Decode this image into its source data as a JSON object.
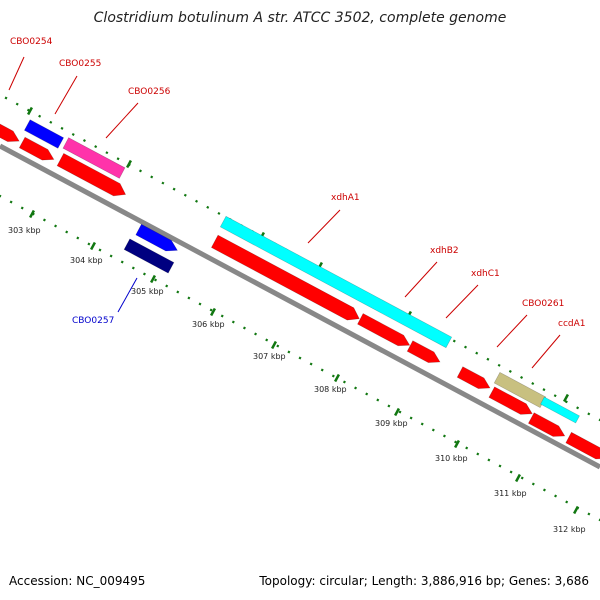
{
  "title": "Clostridium botulinum A str. ATCC 3502, complete genome",
  "footer": {
    "accession": "Accession: NC_009495",
    "stats": "Topology: circular; Length: 3,886,916 bp; Genes: 3,686"
  },
  "colors": {
    "backbone": "#888888",
    "tick": "#117711",
    "cds_red": "#ff0000",
    "gene_blue": "#0000ff",
    "gene_navy": "#000080",
    "gene_magenta": "#ff33aa",
    "gene_cyan": "#00ffff",
    "gene_khaki": "#c8c080",
    "label_red": "#cc0000",
    "label_blue": "#0000cc"
  },
  "ticks": [
    {
      "label": "303 kbp"
    },
    {
      "label": "304 kbp"
    },
    {
      "label": "305 kbp"
    },
    {
      "label": "306 kbp"
    },
    {
      "label": "307 kbp"
    },
    {
      "label": "308 kbp"
    },
    {
      "label": "309 kbp"
    },
    {
      "label": "310 kbp"
    },
    {
      "label": "311 kbp"
    },
    {
      "label": "312 kbp"
    }
  ],
  "genes": [
    {
      "name": "CBO0254",
      "color": "#cc0000"
    },
    {
      "name": "CBO0255",
      "color": "#cc0000"
    },
    {
      "name": "CBO0256",
      "color": "#cc0000"
    },
    {
      "name": "CBO0257",
      "color": "#0000cc"
    },
    {
      "name": "xdhA1",
      "color": "#cc0000"
    },
    {
      "name": "xdhB2",
      "color": "#cc0000"
    },
    {
      "name": "xdhC1",
      "color": "#cc0000"
    },
    {
      "name": "CBO0261",
      "color": "#cc0000"
    },
    {
      "name": "ccdA1",
      "color": "#cc0000"
    }
  ]
}
